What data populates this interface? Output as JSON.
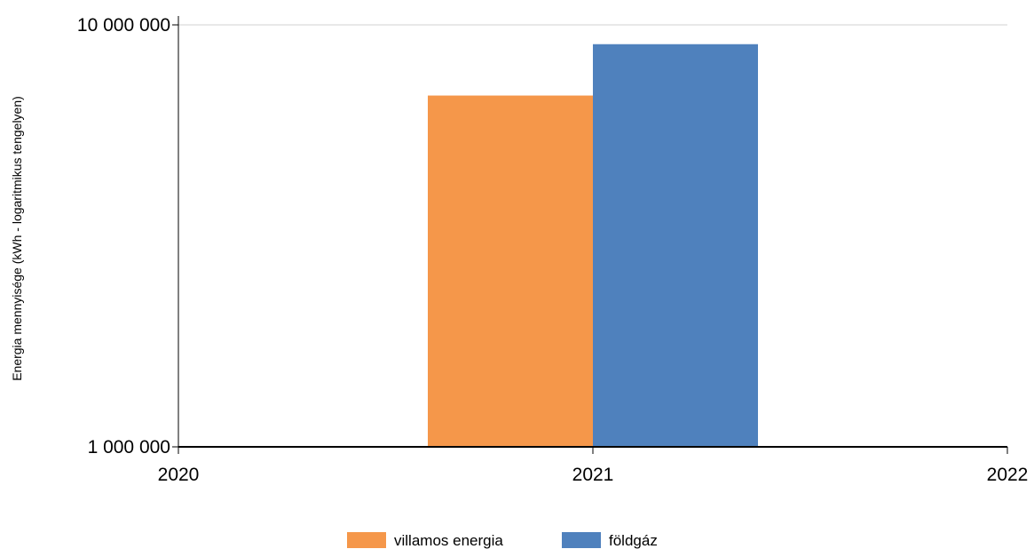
{
  "chart_data": {
    "type": "bar",
    "categories": [
      "2021"
    ],
    "x_ticks": [
      "2020",
      "2021",
      "2022"
    ],
    "series": [
      {
        "name": "villamos energia",
        "values": [
          6800000
        ],
        "color": "#f5974a"
      },
      {
        "name": "földgáz",
        "values": [
          9000000
        ],
        "color": "#4f81bd"
      }
    ],
    "ylabel": "Energia mennyisége (kWh - logaritmikus tengelyen)",
    "y_scale": "log",
    "ylim": [
      1000000,
      10000000
    ],
    "y_ticks": [
      {
        "value": 1000000,
        "label": "1 000 000"
      },
      {
        "value": 10000000,
        "label": "10 000 000"
      }
    ],
    "grid": "horizontal at top tick only",
    "legend_position": "bottom-center"
  }
}
